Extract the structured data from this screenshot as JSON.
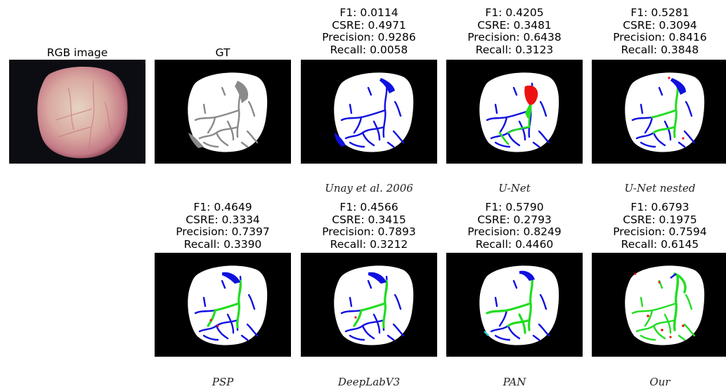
{
  "figure": {
    "rgb_title": "RGB image",
    "gt_title": "GT",
    "panels": [
      {
        "caption": "Unay et al. 2006",
        "f1": "F1: 0.0114",
        "csre": "CSRE: 0.4971",
        "precision": "Precision: 0.9286",
        "recall": "Recall: 0.0058"
      },
      {
        "caption": "U-Net",
        "f1": "F1: 0.4205",
        "csre": "CSRE: 0.3481",
        "precision": "Precision: 0.6438",
        "recall": "Recall: 0.3123"
      },
      {
        "caption": "U-Net nested",
        "f1": "F1: 0.5281",
        "csre": "CSRE: 0.3094",
        "precision": "Precision: 0.8416",
        "recall": "Recall: 0.3848"
      },
      {
        "caption": "PSP",
        "f1": "F1: 0.4649",
        "csre": "CSRE: 0.3334",
        "precision": "Precision: 0.7397",
        "recall": "Recall: 0.3390"
      },
      {
        "caption": "DeepLabV3",
        "f1": "F1: 0.4566",
        "csre": "CSRE: 0.3415",
        "precision": "Precision: 0.7893",
        "recall": "Recall: 0.3212"
      },
      {
        "caption": "PAN",
        "f1": "F1: 0.5790",
        "csre": "CSRE: 0.2793",
        "precision": "Precision: 0.8249",
        "recall": "Recall: 0.4460"
      },
      {
        "caption": "Our",
        "f1": "F1: 0.6793",
        "csre": "CSRE: 0.1975",
        "precision": "Precision: 0.7594",
        "recall": "Recall: 0.6145"
      }
    ]
  },
  "colors": {
    "background": "#000000",
    "fruit": "#ffffff",
    "gt_defect": "#8a8a8a",
    "false_negative": "#1010e0",
    "true_positive": "#22dd22",
    "false_positive": "#ee1111"
  }
}
